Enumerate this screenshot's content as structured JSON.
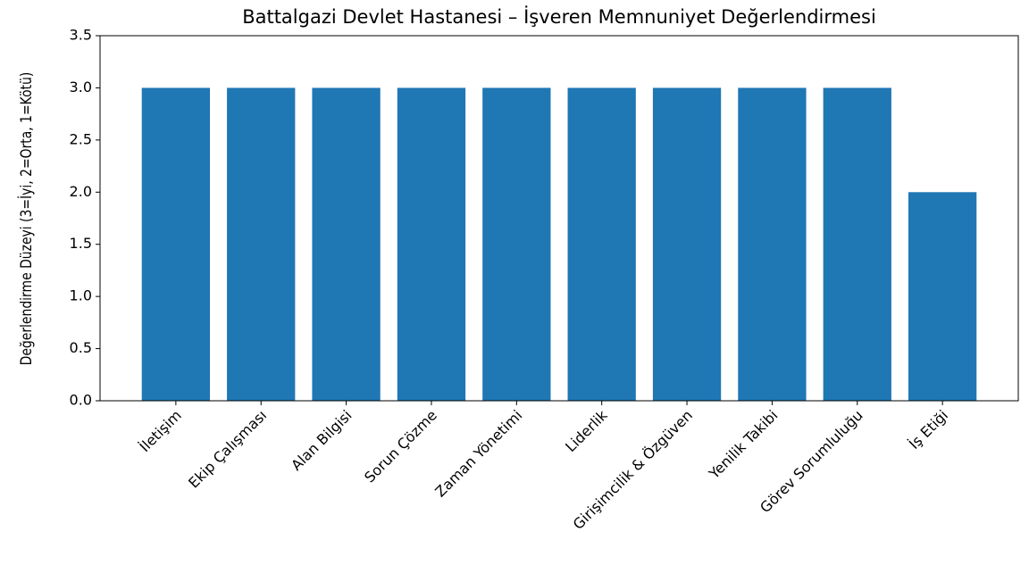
{
  "chart_data": {
    "type": "bar",
    "title": "Battalgazi Devlet Hastanesi – İşveren Memnuniyet Değerlendirmesi",
    "y_label": "Değerlendirme Düzeyi (3=İyi, 2=Orta, 1=Kötü)",
    "categories": [
      "İletişim",
      "Ekip Çalışması",
      "Alan Bilgisi",
      "Sorun Çözme",
      "Zaman Yönetimi",
      "Liderlik",
      "Girişimcilik & Özgüven",
      "Yenilik Takibi",
      "Görev Sorumluluğu",
      "İş Etiği"
    ],
    "values": [
      3,
      3,
      3,
      3,
      3,
      3,
      3,
      3,
      3,
      2
    ],
    "color": "#1f77b4",
    "ylim": [
      0,
      3.5
    ],
    "yticks": [
      {
        "value": 0,
        "label": "0.0"
      },
      {
        "value": 0.5,
        "label": "0.5"
      },
      {
        "value": 1,
        "label": "1.0"
      },
      {
        "value": 1.5,
        "label": "1.5"
      },
      {
        "value": 2,
        "label": "2.0"
      },
      {
        "value": 2.5,
        "label": "2.5"
      },
      {
        "value": 3,
        "label": "3.0"
      },
      {
        "value": 3.5,
        "label": "3.5"
      }
    ],
    "grid": false
  }
}
